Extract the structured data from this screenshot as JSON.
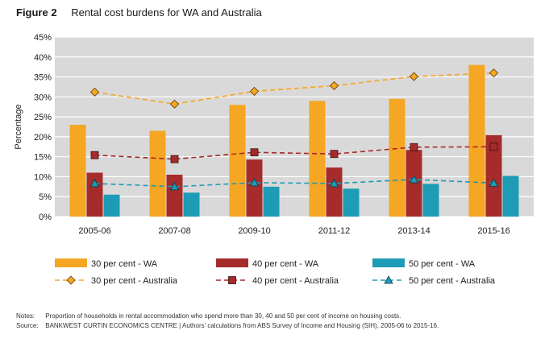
{
  "figure": {
    "number": "Figure 2",
    "title": "Rental cost burdens for WA and Australia"
  },
  "chart_data": {
    "type": "bar",
    "categories": [
      "2005-06",
      "2007-08",
      "2009-10",
      "2011-12",
      "2013-14",
      "2015-16"
    ],
    "ylabel": "Percentage",
    "ylim": [
      0,
      45
    ],
    "yticks": [
      "0%",
      "5%",
      "10%",
      "15%",
      "20%",
      "25%",
      "30%",
      "35%",
      "40%",
      "45%"
    ],
    "grid": true,
    "legend_position": "bottom",
    "bar_series": [
      {
        "name": "30 per cent - WA",
        "color": "#F5A623",
        "values": [
          23,
          21.5,
          28,
          29,
          29.5,
          38
        ]
      },
      {
        "name": "40 per cent - WA",
        "color": "#A62B2B",
        "values": [
          11,
          10.5,
          14.3,
          12.3,
          16.7,
          20.4
        ]
      },
      {
        "name": "50 per cent - WA",
        "color": "#1E9BB5",
        "values": [
          5.5,
          6,
          7.5,
          7,
          8.2,
          10.2
        ]
      }
    ],
    "line_series": [
      {
        "name": "30 per cent - Australia",
        "color": "#F5A623",
        "marker": "diamond",
        "values": [
          31.2,
          28.2,
          31.4,
          32.8,
          35.1,
          36
        ]
      },
      {
        "name": "40 per cent - Australia",
        "color": "#A62B2B",
        "marker": "square",
        "values": [
          15.4,
          14.4,
          16.1,
          15.7,
          17.4,
          17.5
        ]
      },
      {
        "name": "50 per cent - Australia",
        "color": "#1E9BB5",
        "marker": "triangle",
        "values": [
          8.3,
          7.5,
          8.5,
          8.3,
          9.3,
          8.4
        ]
      }
    ]
  },
  "notes": {
    "notes_label": "Notes:",
    "notes_text": "Proportion of households in rental accommodation who spend more than 30, 40 and 50 per cent of income on housing costs.",
    "source_label": "Source:",
    "source_text": "BANKWEST CURTIN ECONOMICS CENTRE | Authors' calculations from ABS Survey of Income and Housing (SIH), 2005-06 to 2015-16."
  }
}
